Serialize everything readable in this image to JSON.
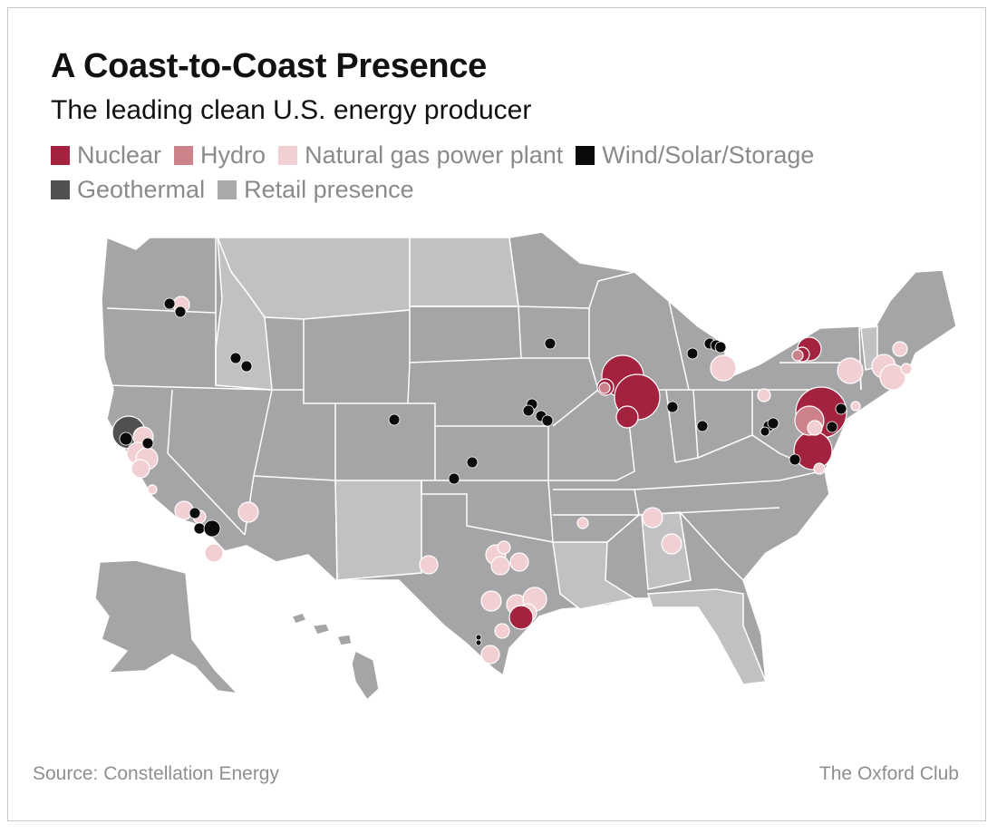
{
  "title": "A Coast-to-Coast Presence",
  "subtitle": "The leading clean U.S. energy producer",
  "legend": [
    {
      "label": "Nuclear",
      "color": "#a3233f"
    },
    {
      "label": "Hydro",
      "color": "#cd8189"
    },
    {
      "label": "Natural gas power plant",
      "color": "#f2cfd3"
    },
    {
      "label": "Wind/Solar/Storage",
      "color": "#0a0a0a"
    },
    {
      "label": "Geothermal",
      "color": "#505050"
    },
    {
      "label": "Retail presence",
      "color": "#a9a9ac"
    }
  ],
  "map_colors": {
    "state_fill": "#a5a5a8",
    "non_retail_fill": "#c1c1c4",
    "state_border": "#ffffff"
  },
  "footer": {
    "source": "Source: Constellation Energy",
    "brand": "The Oxford Club"
  }
}
